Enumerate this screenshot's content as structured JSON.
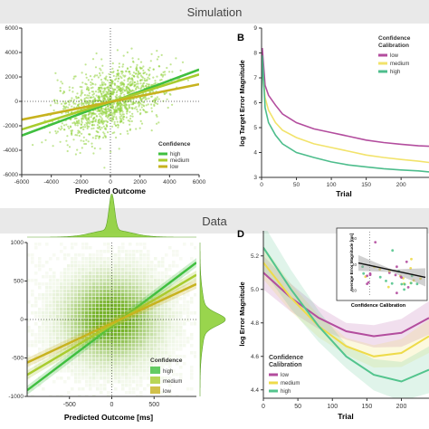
{
  "sections": {
    "top_title": "Simulation",
    "bottom_title": "Data"
  },
  "panel_labels": {
    "B": "B",
    "D": "D"
  },
  "colors": {
    "high": "#3fbf3f",
    "medium": "#a8cc2e",
    "low": "#c7b21e",
    "B_low": "#b34d9e",
    "B_medium": "#f2e36b",
    "B_high": "#4dbd8c",
    "D_low": "#b34d9e",
    "D_medium": "#eedb4a",
    "D_high": "#53c48d",
    "cloud": "#8fd13a"
  },
  "chart_data": [
    {
      "id": "A",
      "type": "scatter",
      "xlabel": "Predicted Outcome",
      "ylabel": "",
      "xlim": [
        -6000,
        6000
      ],
      "ylim": [
        -6000,
        6000
      ],
      "xticks": [
        "-6000",
        "-4000",
        "-2000",
        "0",
        "2000",
        "4000",
        "6000"
      ],
      "yticks": [
        "-6000",
        "-4000",
        "-2000",
        "0",
        "2000",
        "4000",
        "6000"
      ],
      "legend": {
        "title": "Confidence",
        "position": "bottom-right",
        "entries": [
          "high",
          "medium",
          "low"
        ]
      },
      "series": [
        {
          "name": "high",
          "x": [
            -6000,
            6000
          ],
          "y": [
            -2800,
            2600
          ]
        },
        {
          "name": "medium",
          "x": [
            -6000,
            6000
          ],
          "y": [
            -2300,
            2200
          ]
        },
        {
          "name": "low",
          "x": [
            -6000,
            6000
          ],
          "y": [
            -1500,
            1400
          ]
        }
      ]
    },
    {
      "id": "B",
      "type": "line",
      "xlabel": "Trial",
      "ylabel": "log Target Error Magnitude",
      "xlim": [
        0,
        240
      ],
      "ylim": [
        3,
        9
      ],
      "xticks": [
        "0",
        "50",
        "100",
        "150",
        "200"
      ],
      "yticks": [
        "3",
        "4",
        "5",
        "6",
        "7",
        "8",
        "9"
      ],
      "legend": {
        "title": "Confidence Calibration",
        "position": "right",
        "entries": [
          "low",
          "medium",
          "high"
        ]
      },
      "series": [
        {
          "name": "low",
          "x": [
            0,
            1,
            5,
            10,
            20,
            30,
            50,
            75,
            100,
            125,
            150,
            175,
            200,
            225,
            240
          ],
          "y": [
            6.6,
            8.2,
            6.7,
            6.3,
            5.9,
            5.55,
            5.2,
            4.95,
            4.8,
            4.65,
            4.5,
            4.4,
            4.33,
            4.27,
            4.25
          ]
        },
        {
          "name": "medium",
          "x": [
            0,
            1,
            5,
            10,
            20,
            30,
            50,
            75,
            100,
            125,
            150,
            175,
            200,
            225,
            240
          ],
          "y": [
            6.2,
            7.5,
            6.2,
            5.7,
            5.2,
            4.9,
            4.6,
            4.35,
            4.2,
            4.05,
            3.9,
            3.8,
            3.72,
            3.65,
            3.6
          ]
        },
        {
          "name": "high",
          "x": [
            0,
            1,
            5,
            10,
            20,
            30,
            50,
            75,
            100,
            125,
            150,
            175,
            200,
            225,
            240
          ],
          "y": [
            6.0,
            7.9,
            5.8,
            5.2,
            4.7,
            4.35,
            4.0,
            3.8,
            3.62,
            3.5,
            3.42,
            3.35,
            3.3,
            3.26,
            3.22
          ]
        }
      ]
    },
    {
      "id": "C",
      "type": "heatmap",
      "xlabel": "Predicted Outcome [ms]",
      "ylabel": "",
      "xlim": [
        -1000,
        1000
      ],
      "ylim": [
        -1000,
        1000
      ],
      "xticks": [
        "-500",
        "0",
        "500"
      ],
      "yticks": [
        "-1000",
        "-500",
        "0",
        "500",
        "1000"
      ],
      "legend": {
        "title": "Confidence",
        "position": "bottom-right",
        "entries": [
          "high",
          "medium",
          "low"
        ]
      },
      "series": [
        {
          "name": "high",
          "x": [
            -1000,
            1000
          ],
          "y": [
            -920,
            740
          ]
        },
        {
          "name": "medium",
          "x": [
            -1000,
            1000
          ],
          "y": [
            -720,
            580
          ]
        },
        {
          "name": "low",
          "x": [
            -1000,
            1000
          ],
          "y": [
            -560,
            460
          ]
        }
      ]
    },
    {
      "id": "D",
      "type": "line",
      "xlabel": "Trial",
      "ylabel": "log Error Magnitude",
      "xlim": [
        0,
        240
      ],
      "ylim": [
        4.35,
        5.35
      ],
      "xticks": [
        "0",
        "50",
        "100",
        "150",
        "200"
      ],
      "yticks": [
        "4.4",
        "4.6",
        "4.8",
        "5.0",
        "5.2"
      ],
      "legend": {
        "title": "Confidence Calibration",
        "position": "bottom-left",
        "entries": [
          "low",
          "medium",
          "high"
        ]
      },
      "series": [
        {
          "name": "low",
          "x": [
            0,
            40,
            80,
            120,
            160,
            200,
            240
          ],
          "y": [
            5.1,
            4.95,
            4.83,
            4.75,
            4.72,
            4.74,
            4.83
          ]
        },
        {
          "name": "medium",
          "x": [
            0,
            40,
            80,
            120,
            160,
            200,
            240
          ],
          "y": [
            5.16,
            4.95,
            4.78,
            4.66,
            4.6,
            4.62,
            4.72
          ]
        },
        {
          "name": "high",
          "x": [
            0,
            40,
            80,
            120,
            160,
            200,
            240
          ],
          "y": [
            5.25,
            5.0,
            4.78,
            4.6,
            4.49,
            4.45,
            4.52
          ]
        }
      ]
    },
    {
      "id": "D_inset",
      "type": "scatter",
      "xlabel": "Confidence Calibration",
      "ylabel": "Average Error Magnitude [ms]",
      "yticks": [
        "20",
        "40",
        "60"
      ],
      "series": [
        {
          "name": "fit",
          "x": [
            -0.2,
            1.0
          ],
          "y": [
            41,
            30
          ]
        }
      ]
    }
  ]
}
